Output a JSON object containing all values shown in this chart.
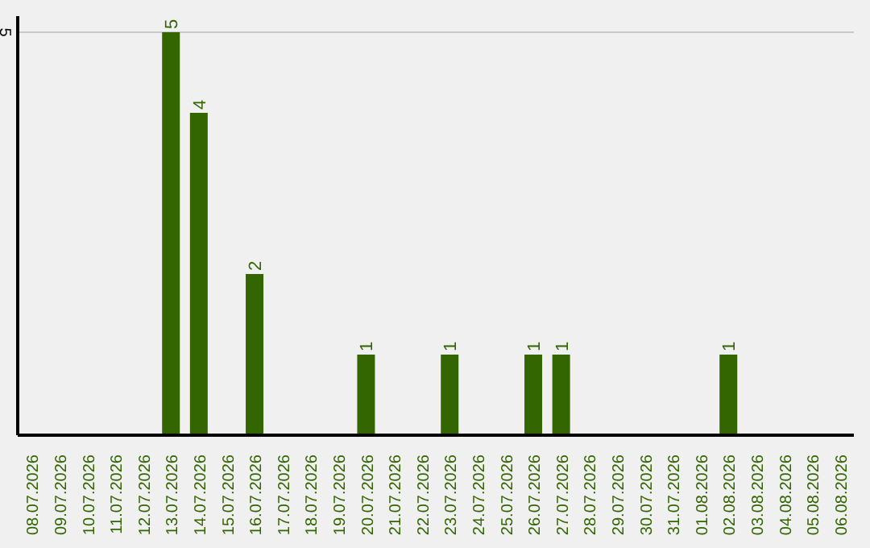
{
  "chart_data": {
    "type": "bar",
    "categories": [
      "08.07.2026",
      "09.07.2026",
      "10.07.2026",
      "11.07.2026",
      "12.07.2026",
      "13.07.2026",
      "14.07.2026",
      "15.07.2026",
      "16.07.2026",
      "17.07.2026",
      "18.07.2026",
      "19.07.2026",
      "20.07.2026",
      "21.07.2026",
      "22.07.2026",
      "23.07.2026",
      "24.07.2026",
      "25.07.2026",
      "26.07.2026",
      "27.07.2026",
      "28.07.2026",
      "29.07.2026",
      "30.07.2026",
      "31.07.2026",
      "01.08.2026",
      "02.08.2026",
      "03.08.2026",
      "04.08.2026",
      "05.08.2026",
      "06.08.2026"
    ],
    "values": [
      0,
      0,
      0,
      0,
      0,
      5,
      4,
      0,
      2,
      0,
      0,
      0,
      1,
      0,
      0,
      1,
      0,
      0,
      1,
      1,
      0,
      0,
      0,
      0,
      0,
      1,
      0,
      0,
      0,
      0
    ],
    "value_labels": [
      null,
      null,
      null,
      null,
      null,
      "5",
      "4",
      null,
      "2",
      null,
      null,
      null,
      "1",
      null,
      null,
      "1",
      null,
      null,
      "1",
      "1",
      null,
      null,
      null,
      null,
      null,
      "1",
      null,
      null,
      null,
      null
    ],
    "color": "#336600",
    "ylim": [
      0,
      5.2
    ],
    "yticks": [
      5
    ],
    "grid": "y"
  }
}
